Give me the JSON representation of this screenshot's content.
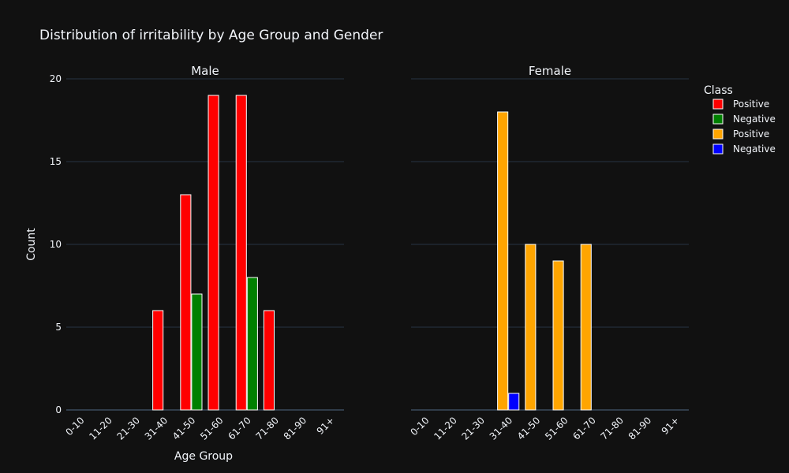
{
  "chart_data": {
    "type": "bar",
    "title": "Distribution of irritability by Age Group and Gender",
    "xlabel": "Age Group",
    "ylabel": "Count",
    "ylim": [
      0,
      20
    ],
    "yticks": [
      0,
      5,
      10,
      15,
      20
    ],
    "grid": true,
    "categories": [
      "0-10",
      "11-20",
      "21-30",
      "31-40",
      "41-50",
      "51-60",
      "61-70",
      "71-80",
      "81-90",
      "91+"
    ],
    "panels": [
      {
        "title": "Male",
        "series": [
          {
            "name": "Positive",
            "color": "#ff0000",
            "values": [
              0,
              0,
              0,
              6,
              13,
              19,
              19,
              6,
              0,
              0
            ]
          },
          {
            "name": "Negative",
            "color": "#008000",
            "values": [
              0,
              0,
              0,
              0,
              7,
              0,
              8,
              0,
              0,
              0
            ]
          }
        ]
      },
      {
        "title": "Female",
        "series": [
          {
            "name": "Positive",
            "color": "#ffa500",
            "values": [
              0,
              0,
              0,
              18,
              10,
              9,
              10,
              0,
              0,
              0
            ]
          },
          {
            "name": "Negative",
            "color": "#0000ff",
            "values": [
              0,
              0,
              0,
              1,
              0,
              0,
              0,
              0,
              0,
              0
            ]
          }
        ]
      }
    ],
    "legend": {
      "title": "Class",
      "placement": "right",
      "entries": [
        {
          "name": "Positive",
          "color": "#ff0000"
        },
        {
          "name": "Negative",
          "color": "#008000"
        },
        {
          "name": "Positive",
          "color": "#ffa500"
        },
        {
          "name": "Negative",
          "color": "#0000ff"
        }
      ]
    }
  }
}
